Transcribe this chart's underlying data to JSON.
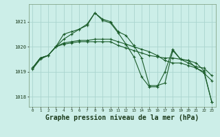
{
  "background_color": "#cceee8",
  "grid_color": "#aad4ce",
  "line_color": "#1a5c2a",
  "title": "Graphe pression niveau de la mer (hPa)",
  "title_fontsize": 7.0,
  "xlim": [
    -0.5,
    23.5
  ],
  "ylim": [
    1017.6,
    1021.7
  ],
  "yticks": [
    1018,
    1019,
    1020,
    1021
  ],
  "xticks": [
    0,
    1,
    2,
    3,
    4,
    5,
    6,
    7,
    8,
    9,
    10,
    11,
    12,
    13,
    14,
    15,
    16,
    17,
    18,
    19,
    20,
    21,
    22,
    23
  ],
  "series": [
    [
      1019.15,
      1019.55,
      1019.65,
      1020.0,
      1020.5,
      1020.6,
      1020.7,
      1020.85,
      1021.35,
      1021.1,
      1021.0,
      1020.6,
      1020.45,
      1020.05,
      1019.55,
      1018.45,
      1018.45,
      1018.55,
      1019.85,
      1019.5,
      1019.45,
      1019.15,
      1019.0,
      1017.8
    ],
    [
      1019.15,
      1019.55,
      1019.65,
      1020.0,
      1020.1,
      1020.15,
      1020.2,
      1020.2,
      1020.2,
      1020.2,
      1020.2,
      1020.05,
      1019.95,
      1019.85,
      1019.75,
      1019.65,
      1019.6,
      1019.55,
      1019.55,
      1019.5,
      1019.35,
      1019.2,
      1019.15,
      1018.85
    ],
    [
      1019.15,
      1019.55,
      1019.65,
      1020.0,
      1020.15,
      1020.2,
      1020.25,
      1020.25,
      1020.3,
      1020.3,
      1020.3,
      1020.2,
      1020.1,
      1020.0,
      1019.9,
      1019.8,
      1019.65,
      1019.45,
      1019.35,
      1019.35,
      1019.25,
      1019.15,
      1018.95,
      1018.65
    ],
    [
      1019.1,
      1019.5,
      1019.65,
      1020.0,
      1020.3,
      1020.5,
      1020.7,
      1020.9,
      1021.35,
      1021.05,
      1020.95,
      1020.55,
      1020.1,
      1019.6,
      1018.8,
      1018.4,
      1018.4,
      1019.0,
      1019.9,
      1019.5,
      1019.45,
      1019.35,
      1019.05,
      1017.8
    ]
  ]
}
